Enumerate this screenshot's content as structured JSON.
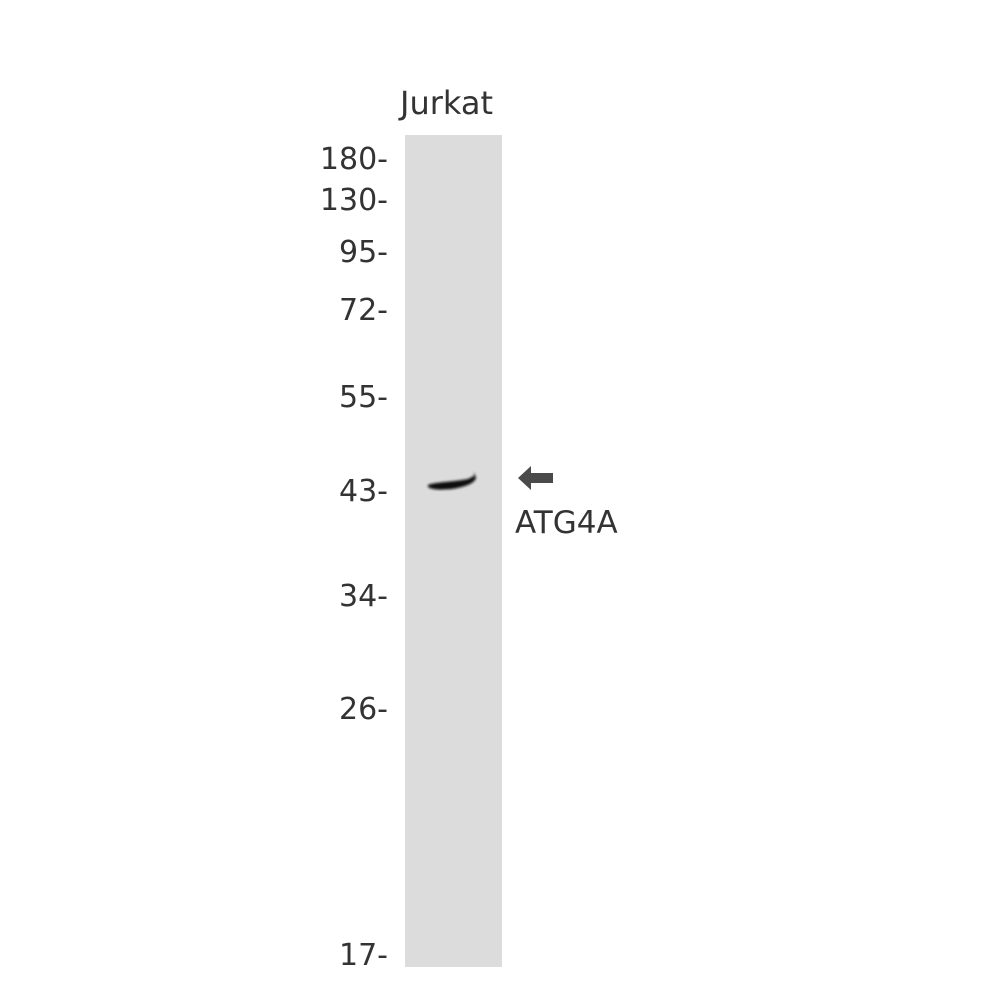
{
  "lane_label": "Jurkat",
  "markers": [
    "180-",
    "130-",
    "95-",
    "72-",
    "55-",
    "43-",
    "34-",
    "26-",
    "17-"
  ],
  "target_label": "ATG4A",
  "colors": {
    "lane": "#dcdcdc",
    "band": "#111111",
    "arrow": "#4a4a4a",
    "text": "#333333"
  },
  "icons": {
    "arrow": "arrow-left-icon"
  }
}
